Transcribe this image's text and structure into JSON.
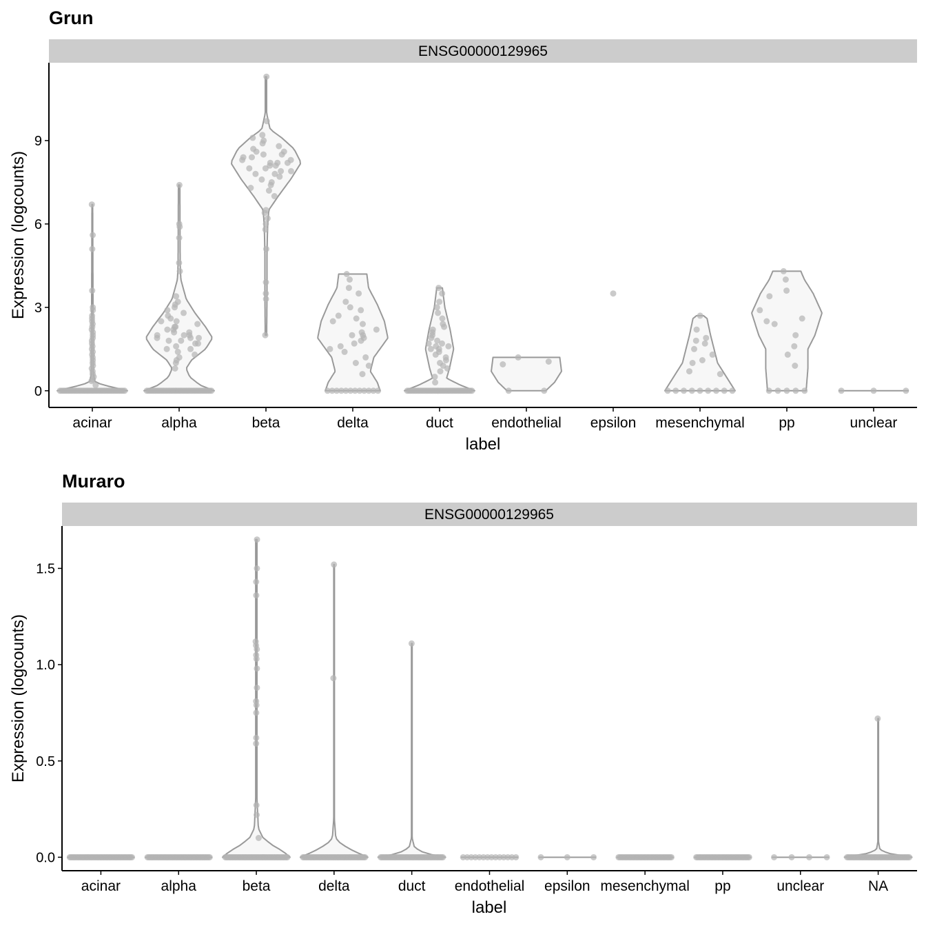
{
  "chart_data": [
    {
      "type": "violin",
      "title": "Grun",
      "strip": "ENSG00000129965",
      "xlabel": "label",
      "ylabel": "Expression (logcounts)",
      "ylim": [
        -0.6,
        11.8
      ],
      "yticks": [
        0,
        3,
        6,
        9
      ],
      "ytick_labels": [
        "0",
        "3",
        "6",
        "9"
      ],
      "categories": [
        "acinar",
        "alpha",
        "beta",
        "delta",
        "duct",
        "endothelial",
        "epsilon",
        "mesenchymal",
        "pp",
        "unclear"
      ],
      "violins": [
        {
          "profile": [
            [
              0,
              1
            ],
            [
              0.15,
              0.5
            ],
            [
              0.3,
              0.08
            ],
            [
              0.6,
              0.03
            ],
            [
              1,
              0.025
            ],
            [
              3,
              0.02
            ],
            [
              6.7,
              0.01
            ]
          ],
          "zeros": 40,
          "values": [
            0.2,
            0.35,
            0.4,
            0.5,
            0.6,
            0.7,
            0.8,
            0.9,
            1.0,
            1.1,
            1.2,
            1.3,
            1.4,
            1.5,
            1.6,
            1.7,
            1.8,
            1.9,
            2.0,
            2.1,
            2.2,
            2.3,
            2.4,
            2.5,
            2.6,
            2.7,
            2.9,
            3.0,
            3.6,
            5.1,
            5.6,
            6.7
          ]
        },
        {
          "profile": [
            [
              0,
              1
            ],
            [
              0.2,
              0.6
            ],
            [
              0.5,
              0.3
            ],
            [
              0.8,
              0.2
            ],
            [
              1.1,
              0.35
            ],
            [
              1.5,
              0.75
            ],
            [
              1.9,
              0.95
            ],
            [
              2.3,
              0.75
            ],
            [
              2.8,
              0.45
            ],
            [
              3.3,
              0.2
            ],
            [
              4,
              0.05
            ],
            [
              4.5,
              0.03
            ],
            [
              7.4,
              0.02
            ]
          ],
          "zeros": 40,
          "values": [
            0.8,
            1.0,
            1.1,
            1.2,
            1.3,
            1.4,
            1.5,
            1.5,
            1.6,
            1.7,
            1.7,
            1.8,
            1.8,
            1.9,
            1.9,
            1.9,
            2.0,
            2.0,
            2.0,
            2.1,
            2.1,
            2.2,
            2.2,
            2.3,
            2.3,
            2.4,
            2.5,
            2.5,
            2.6,
            2.7,
            2.8,
            2.9,
            3.0,
            3.1,
            3.2,
            3.4,
            4.3,
            4.6,
            5.5,
            5.9,
            6.0,
            7.4
          ]
        },
        {
          "profile": [
            [
              2,
              0.02
            ],
            [
              3.5,
              0.03
            ],
            [
              5,
              0.03
            ],
            [
              6,
              0.05
            ],
            [
              6.5,
              0.08
            ],
            [
              7,
              0.35
            ],
            [
              7.6,
              0.7
            ],
            [
              8.2,
              1
            ],
            [
              8.7,
              0.8
            ],
            [
              9.1,
              0.45
            ],
            [
              9.4,
              0.12
            ],
            [
              9.8,
              0.05
            ],
            [
              10,
              0.02
            ],
            [
              11.3,
              0.02
            ]
          ],
          "zeros": 0,
          "values": [
            2.0,
            3.3,
            3.5,
            3.9,
            5.1,
            5.8,
            6.0,
            6.2,
            6.4,
            6.5,
            7.0,
            7.2,
            7.3,
            7.4,
            7.5,
            7.6,
            7.7,
            7.8,
            7.8,
            7.9,
            7.9,
            8.0,
            8.0,
            8.1,
            8.1,
            8.2,
            8.2,
            8.2,
            8.3,
            8.3,
            8.4,
            8.4,
            8.5,
            8.5,
            8.6,
            8.6,
            8.7,
            8.8,
            8.9,
            9.0,
            9.1,
            9.2,
            9.7,
            11.3
          ]
        },
        {
          "profile": [
            [
              0,
              0.78
            ],
            [
              0.3,
              0.7
            ],
            [
              0.7,
              0.5
            ],
            [
              1.2,
              0.6
            ],
            [
              1.9,
              1
            ],
            [
              2.5,
              0.9
            ],
            [
              3.1,
              0.7
            ],
            [
              3.7,
              0.45
            ],
            [
              4.2,
              0.4
            ]
          ],
          "zeros": 12,
          "values": [
            0.6,
            0.9,
            1.0,
            1.2,
            1.4,
            1.5,
            1.6,
            1.7,
            1.8,
            1.9,
            2.0,
            2.0,
            2.1,
            2.2,
            2.4,
            2.5,
            2.6,
            2.7,
            2.9,
            3.0,
            3.2,
            3.5,
            3.7,
            4.0,
            4.2
          ]
        },
        {
          "profile": [
            [
              0,
              1
            ],
            [
              0.2,
              0.6
            ],
            [
              0.45,
              0.2
            ],
            [
              0.8,
              0.28
            ],
            [
              1.5,
              0.4
            ],
            [
              2.2,
              0.3
            ],
            [
              3,
              0.15
            ],
            [
              3.7,
              0.08
            ]
          ],
          "zeros": 40,
          "values": [
            0.3,
            0.5,
            0.7,
            0.8,
            0.9,
            1.0,
            1.1,
            1.2,
            1.3,
            1.4,
            1.5,
            1.5,
            1.6,
            1.6,
            1.7,
            1.7,
            1.8,
            1.9,
            2.0,
            2.1,
            2.2,
            2.3,
            2.4,
            2.6,
            2.8,
            3.0,
            3.2,
            3.5,
            3.7
          ]
        },
        {
          "profile": [
            [
              0,
              0.55
            ],
            [
              0.3,
              0.8
            ],
            [
              0.7,
              1
            ],
            [
              1.2,
              0.95
            ]
          ],
          "zeros": 2,
          "values": [
            0.95,
            1.05,
            1.2
          ]
        },
        {
          "profile": [],
          "zeros": 0,
          "values": [
            3.5
          ]
        },
        {
          "profile": [
            [
              0,
              1
            ],
            [
              0.4,
              0.8
            ],
            [
              1,
              0.5
            ],
            [
              1.5,
              0.4
            ],
            [
              2,
              0.3
            ],
            [
              2.6,
              0.2
            ],
            [
              2.7,
              0.1
            ]
          ],
          "zeros": 9,
          "values": [
            0.6,
            0.7,
            1.0,
            1.1,
            1.3,
            1.5,
            1.7,
            1.8,
            1.9,
            2.2,
            2.7
          ]
        },
        {
          "profile": [
            [
              0,
              0.55
            ],
            [
              0.8,
              0.6
            ],
            [
              1.5,
              0.6
            ],
            [
              2,
              0.8
            ],
            [
              2.8,
              1
            ],
            [
              3.5,
              0.75
            ],
            [
              4.0,
              0.5
            ],
            [
              4.3,
              0.4
            ]
          ],
          "zeros": 5,
          "values": [
            0.9,
            1.3,
            1.6,
            2.0,
            2.4,
            2.5,
            2.6,
            2.9,
            3.4,
            3.6,
            4.0,
            4.3
          ]
        },
        {
          "profile": [
            [
              0,
              1
            ]
          ],
          "zeros": 3,
          "values": []
        }
      ]
    },
    {
      "type": "violin",
      "title": "Muraro",
      "strip": "ENSG00000129965",
      "xlabel": "label",
      "ylabel": "Expression (logcounts)",
      "ylim": [
        -0.07,
        1.72
      ],
      "yticks": [
        0,
        0.5,
        1,
        1.5
      ],
      "ytick_labels": [
        "0.0",
        "0.5",
        "1.0",
        "1.5"
      ],
      "categories": [
        "acinar",
        "alpha",
        "beta",
        "delta",
        "duct",
        "endothelial",
        "epsilon",
        "mesenchymal",
        "pp",
        "unclear",
        "NA"
      ],
      "violins": [
        {
          "profile": [
            [
              0,
              1
            ]
          ],
          "zeros": 50,
          "values": []
        },
        {
          "profile": [
            [
              0,
              1
            ]
          ],
          "zeros": 50,
          "values": []
        },
        {
          "profile": [
            [
              0,
              1
            ],
            [
              0.03,
              0.8
            ],
            [
              0.06,
              0.5
            ],
            [
              0.1,
              0.2
            ],
            [
              0.15,
              0.06
            ],
            [
              0.3,
              0.02
            ],
            [
              1.65,
              0.02
            ]
          ],
          "zeros": 50,
          "values": [
            0.1,
            0.22,
            0.27,
            0.59,
            0.62,
            0.75,
            0.79,
            0.81,
            0.88,
            0.98,
            1.03,
            1.05,
            1.08,
            1.1,
            1.12,
            1.36,
            1.43,
            1.5,
            1.65
          ]
        },
        {
          "profile": [
            [
              0,
              1
            ],
            [
              0.03,
              0.6
            ],
            [
              0.07,
              0.2
            ],
            [
              0.1,
              0.05
            ],
            [
              0.2,
              0.01
            ],
            [
              1.52,
              0.01
            ]
          ],
          "zeros": 50,
          "values": [
            0.93,
            1.52
          ]
        },
        {
          "profile": [
            [
              0,
              1
            ],
            [
              0.02,
              0.4
            ],
            [
              0.05,
              0.08
            ],
            [
              0.1,
              0.01
            ],
            [
              1.11,
              0.01
            ]
          ],
          "zeros": 50,
          "values": [
            1.11
          ]
        },
        {
          "profile": [
            [
              0,
              0.85
            ]
          ],
          "zeros": 14,
          "values": []
        },
        {
          "profile": [
            [
              0,
              0.85
            ]
          ],
          "zeros": 3,
          "values": []
        },
        {
          "profile": [
            [
              0,
              0.85
            ]
          ],
          "zeros": 40,
          "values": []
        },
        {
          "profile": [
            [
              0,
              0.85
            ]
          ],
          "zeros": 40,
          "values": []
        },
        {
          "profile": [
            [
              0,
              0.85
            ]
          ],
          "zeros": 4,
          "values": []
        },
        {
          "profile": [
            [
              0,
              1
            ],
            [
              0.02,
              0.3
            ],
            [
              0.04,
              0.05
            ],
            [
              0.08,
              0.01
            ],
            [
              0.72,
              0.01
            ]
          ],
          "zeros": 50,
          "values": [
            0.72
          ]
        }
      ]
    }
  ],
  "colors": {
    "point": "#b3b3b3",
    "violin_fill": "#f7f7f7",
    "violin_stroke": "#999999",
    "strip": "#cccccc"
  }
}
